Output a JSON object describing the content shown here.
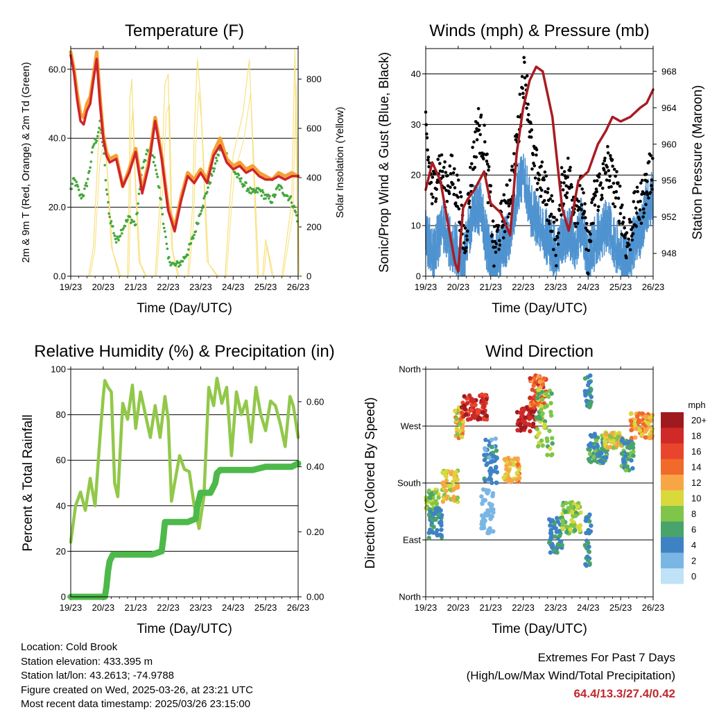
{
  "chart_data": [
    {
      "type": "line",
      "title": "Temperature (F)",
      "xlabel": "Time (Day/UTC)",
      "ylabel": "2m & 9m T (Red, Orange) & 2m Td (Green)",
      "y2label": "Solar Insolation (Yellow)",
      "x_ticks": [
        "19/23",
        "20/23",
        "21/23",
        "22/23",
        "23/23",
        "24/23",
        "25/23",
        "26/23"
      ],
      "xlim": [
        0,
        7
      ],
      "ylim": [
        0,
        66
      ],
      "y_ticks": [
        0,
        20,
        40,
        60
      ],
      "y_tick_labels": [
        "0.0",
        "20.0",
        "40.0",
        "60.0"
      ],
      "y2lim": [
        0,
        924
      ],
      "y2_ticks": [
        0,
        200,
        400,
        600,
        800
      ],
      "y2_tick_labels": [
        "0",
        "200",
        "400",
        "600",
        "800"
      ],
      "grid": "horizontal",
      "series": [
        {
          "key": "t9m",
          "color": "#f5a033",
          "x": [
            0,
            0.1,
            0.2,
            0.3,
            0.4,
            0.5,
            0.6,
            0.7,
            0.8,
            0.9,
            1.0,
            1.1,
            1.2,
            1.4,
            1.6,
            1.8,
            2.0,
            2.2,
            2.4,
            2.6,
            2.8,
            3.0,
            3.2,
            3.4,
            3.6,
            3.8,
            4.0,
            4.2,
            4.4,
            4.6,
            4.8,
            5.0,
            5.2,
            5.4,
            5.6,
            5.8,
            6.0,
            6.2,
            6.4,
            6.6,
            6.8,
            7.0
          ],
          "y": [
            65,
            60,
            53,
            47,
            46,
            50,
            52,
            58,
            65,
            52,
            41,
            36,
            34,
            35,
            26,
            31,
            37,
            25,
            33,
            46,
            35,
            20,
            14,
            23,
            30,
            28,
            31,
            28,
            36,
            40,
            34,
            32,
            33,
            31,
            32,
            30,
            29,
            28,
            30,
            29,
            30,
            29
          ]
        },
        {
          "key": "t2m",
          "color": "#d0242b",
          "x": [
            0,
            0.1,
            0.2,
            0.3,
            0.4,
            0.5,
            0.6,
            0.7,
            0.8,
            0.9,
            1.0,
            1.1,
            1.2,
            1.4,
            1.6,
            1.8,
            2.0,
            2.2,
            2.4,
            2.6,
            2.8,
            3.0,
            3.2,
            3.4,
            3.6,
            3.8,
            4.0,
            4.2,
            4.4,
            4.6,
            4.8,
            5.0,
            5.2,
            5.4,
            5.6,
            5.8,
            6.0,
            6.2,
            6.4,
            6.6,
            6.8,
            7.0
          ],
          "y": [
            64,
            59,
            51,
            45,
            44,
            48,
            50,
            57,
            63,
            50,
            40,
            35,
            33,
            34,
            26,
            30,
            36,
            24,
            32,
            45,
            34,
            19,
            13,
            22,
            29,
            27,
            30,
            27,
            35,
            38,
            33,
            31,
            32,
            30,
            31,
            29,
            28,
            28,
            29,
            28,
            29,
            29
          ]
        },
        {
          "key": "td",
          "color": "#44a83c",
          "x": [
            0,
            0.1,
            0.2,
            0.3,
            0.4,
            0.5,
            0.6,
            0.7,
            0.8,
            0.9,
            1.0,
            1.1,
            1.2,
            1.3,
            1.4,
            1.6,
            1.8,
            2.0,
            2.2,
            2.4,
            2.6,
            2.8,
            3.0,
            3.2,
            3.4,
            3.6,
            3.8,
            4.0,
            4.2,
            4.4,
            4.6,
            4.8,
            5.0,
            5.2,
            5.4,
            5.6,
            5.8,
            6.0,
            6.2,
            6.4,
            6.6,
            6.8,
            7.0
          ],
          "y": [
            25,
            28,
            26,
            23,
            24,
            27,
            32,
            38,
            40,
            44,
            38,
            25,
            17,
            14,
            10,
            14,
            17,
            15,
            31,
            37,
            33,
            20,
            5,
            3,
            4,
            7,
            12,
            19,
            25,
            31,
            37,
            35,
            31,
            28,
            26,
            24,
            25,
            23,
            22,
            26,
            24,
            22,
            16
          ]
        },
        {
          "key": "solar",
          "color": "#f8e07a",
          "x": [
            0.55,
            0.7,
            0.85,
            0.92,
            1.0,
            1.1,
            1.25,
            1.5,
            1.75,
            1.8,
            1.82,
            1.88,
            1.95,
            2.1,
            2.3,
            2.6,
            2.75,
            2.8,
            2.9,
            3.0,
            3.1,
            3.3,
            3.6,
            3.75,
            3.8,
            3.9,
            4.0,
            4.2,
            4.5,
            4.75,
            4.9,
            5.0,
            5.3,
            5.5,
            5.75,
            5.9,
            6.0,
            6.2,
            6.5,
            6.8,
            6.9,
            7.0
          ],
          "y": [
            0,
            120,
            530,
            600,
            620,
            480,
            120,
            0,
            0,
            360,
            720,
            800,
            480,
            60,
            0,
            0,
            310,
            420,
            780,
            820,
            120,
            0,
            0,
            280,
            580,
            880,
            720,
            60,
            0,
            0,
            310,
            490,
            660,
            880,
            0,
            0,
            150,
            0,
            0,
            300,
            920,
            0
          ]
        }
      ]
    },
    {
      "type": "scatter",
      "title": "Winds (mph) & Pressure (mb)",
      "xlabel": "Time (Day/UTC)",
      "ylabel": "Sonic/Prop Wind & Gust (Blue, Black)",
      "y2label": "Station Pressure (Maroon)",
      "x_ticks": [
        "19/23",
        "20/23",
        "21/23",
        "22/23",
        "23/23",
        "24/23",
        "25/23",
        "26/23"
      ],
      "xlim": [
        0,
        7
      ],
      "ylim": [
        0,
        45
      ],
      "y_ticks": [
        0,
        10,
        20,
        30,
        40
      ],
      "y2lim": [
        945.5,
        970.5
      ],
      "y2_ticks": [
        948,
        952,
        956,
        960,
        964,
        968
      ],
      "grid": "horizontal",
      "wind_avg": {
        "color": "#4f93d0",
        "x": [
          0,
          0.25,
          0.5,
          0.75,
          1.0,
          1.15,
          1.3,
          1.5,
          1.7,
          1.9,
          2.1,
          2.3,
          2.6,
          2.8,
          3.0,
          3.25,
          3.5,
          3.8,
          4.0,
          4.2,
          4.4,
          4.6,
          4.8,
          5.0,
          5.2,
          5.4,
          5.6,
          5.8,
          6.0,
          6.2,
          6.4,
          6.6,
          6.8,
          7.0
        ],
        "y": [
          10,
          5,
          12,
          8,
          6,
          3,
          10,
          15,
          15,
          7,
          4,
          6,
          10,
          18,
          22,
          14,
          12,
          8,
          6,
          9,
          10,
          8,
          12,
          4,
          8,
          10,
          12,
          8,
          6,
          4,
          8,
          10,
          15,
          17
        ]
      },
      "gust": {
        "color": "#000000",
        "x": [
          0,
          0.2,
          0.4,
          0.6,
          0.8,
          1.0,
          1.2,
          1.4,
          1.6,
          1.8,
          2.0,
          2.1,
          2.3,
          2.5,
          2.7,
          2.9,
          3.0,
          3.1,
          3.3,
          3.5,
          3.7,
          3.9,
          4.0,
          4.2,
          4.4,
          4.6,
          4.8,
          5.0,
          5.2,
          5.4,
          5.6,
          5.8,
          6.0,
          6.2,
          6.4,
          6.6,
          6.8,
          7.0
        ],
        "y": [
          28,
          16,
          22,
          18,
          20,
          16,
          6,
          20,
          30,
          26,
          14,
          5,
          10,
          14,
          20,
          32,
          40,
          38,
          22,
          20,
          16,
          12,
          5,
          18,
          20,
          14,
          16,
          4,
          16,
          18,
          22,
          18,
          14,
          6,
          12,
          14,
          18,
          22
        ]
      },
      "pressure": {
        "color": "#a81c22",
        "x": [
          0,
          0.2,
          0.45,
          0.7,
          0.9,
          1.0,
          1.15,
          1.3,
          1.5,
          1.8,
          2.0,
          2.3,
          2.6,
          2.8,
          3.0,
          3.2,
          3.4,
          3.6,
          3.9,
          4.2,
          4.4,
          4.55,
          4.7,
          5.0,
          5.3,
          5.55,
          5.75,
          6.0,
          6.3,
          6.6,
          6.8,
          7.0
        ],
        "y": [
          955,
          958,
          956,
          951,
          947,
          946,
          953,
          954,
          955,
          957,
          953.5,
          952.5,
          950,
          959,
          964,
          967,
          968.5,
          968,
          963,
          953,
          950.5,
          953,
          956,
          957,
          960,
          961.5,
          963,
          962.5,
          963,
          964,
          964.5,
          966
        ]
      }
    },
    {
      "type": "line",
      "title": "Relative Humidity (%) & Precipitation (in)",
      "xlabel": "Time (Day/UTC)",
      "ylabel": "Percent & Total Rainfall",
      "x_ticks": [
        "19/23",
        "20/23",
        "21/23",
        "22/23",
        "23/23",
        "24/23",
        "25/23",
        "26/23"
      ],
      "xlim": [
        0,
        7
      ],
      "ylim": [
        0,
        100
      ],
      "y_ticks": [
        0,
        20,
        40,
        60,
        80,
        100
      ],
      "y2lim": [
        0,
        0.7
      ],
      "y2_ticks": [
        0,
        0.2,
        0.4,
        0.6
      ],
      "y2_tick_labels": [
        "0.00",
        "0.20",
        "0.40",
        "0.60"
      ],
      "grid": "horizontal",
      "series": [
        {
          "key": "rh",
          "color": "#92c84a",
          "x": [
            0,
            0.15,
            0.3,
            0.45,
            0.6,
            0.75,
            0.9,
            1.0,
            1.05,
            1.15,
            1.25,
            1.35,
            1.45,
            1.6,
            1.75,
            1.9,
            2.0,
            2.15,
            2.3,
            2.45,
            2.6,
            2.75,
            2.9,
            3.0,
            3.1,
            3.2,
            3.35,
            3.5,
            3.65,
            3.8,
            3.95,
            4.1,
            4.25,
            4.4,
            4.5,
            4.65,
            4.8,
            4.95,
            5.1,
            5.25,
            5.4,
            5.55,
            5.7,
            5.85,
            6.0,
            6.15,
            6.3,
            6.45,
            6.6,
            6.75,
            6.85,
            7.0
          ],
          "y": [
            24,
            40,
            46,
            38,
            52,
            40,
            70,
            88,
            95,
            92,
            90,
            50,
            44,
            85,
            78,
            93,
            74,
            90,
            80,
            70,
            84,
            70,
            88,
            78,
            42,
            50,
            62,
            56,
            55,
            40,
            30,
            44,
            92,
            84,
            96,
            85,
            92,
            62,
            90,
            80,
            86,
            68,
            92,
            80,
            73,
            86,
            84,
            76,
            66,
            88,
            84,
            70
          ]
        },
        {
          "key": "precip",
          "color": "#4db94a",
          "x": [
            0,
            0.3,
            0.6,
            0.9,
            1.05,
            1.1,
            1.15,
            1.2,
            1.3,
            1.5,
            1.8,
            2.1,
            2.5,
            2.8,
            2.85,
            2.9,
            3.0,
            3.3,
            3.6,
            3.85,
            3.9,
            4.0,
            4.3,
            4.45,
            4.5,
            4.6,
            4.9,
            5.2,
            5.6,
            6.0,
            6.4,
            6.8,
            7.0
          ],
          "y": [
            0,
            0,
            0,
            0,
            0,
            0.03,
            0.08,
            0.11,
            0.13,
            0.13,
            0.13,
            0.13,
            0.13,
            0.14,
            0.18,
            0.23,
            0.23,
            0.23,
            0.23,
            0.24,
            0.28,
            0.32,
            0.32,
            0.35,
            0.38,
            0.39,
            0.39,
            0.39,
            0.39,
            0.4,
            0.4,
            0.4,
            0.41
          ]
        }
      ]
    },
    {
      "type": "scatter",
      "title": "Wind Direction",
      "xlabel": "Time (Day/UTC)",
      "ylabel": "Direction (Colored By Speed)",
      "x_ticks": [
        "19/23",
        "20/23",
        "21/23",
        "22/23",
        "23/23",
        "24/23",
        "25/23",
        "26/23"
      ],
      "xlim": [
        0,
        7
      ],
      "ylim": [
        0,
        360
      ],
      "y_ticks": [
        0,
        90,
        180,
        270,
        360
      ],
      "y_tick_labels": [
        "North",
        "East",
        "South",
        "West",
        "North"
      ],
      "grid": "horizontal",
      "colorbar": {
        "title": "mph",
        "labels": [
          "20+",
          "18",
          "16",
          "14",
          "12",
          "10",
          "8",
          "6",
          "4",
          "2",
          "0"
        ],
        "colors": [
          "#9e1a1f",
          "#cf2a27",
          "#e8452c",
          "#f06a2c",
          "#f8a645",
          "#d9d83d",
          "#7fc54a",
          "#48a46a",
          "#3f82c4",
          "#7ab6e4",
          "#bfe2f6"
        ]
      },
      "clusters": [
        {
          "x0": 0,
          "x1": 0.4,
          "d0": 135,
          "d1": 170,
          "s0": 6,
          "s1": 10
        },
        {
          "x0": 0.1,
          "x1": 0.5,
          "d0": 90,
          "d1": 140,
          "s0": 3,
          "s1": 6
        },
        {
          "x0": 0.5,
          "x1": 1.0,
          "d0": 150,
          "d1": 200,
          "s0": 8,
          "s1": 13
        },
        {
          "x0": 0.9,
          "x1": 1.15,
          "d0": 250,
          "d1": 300,
          "s0": 8,
          "s1": 14
        },
        {
          "x0": 1.1,
          "x1": 1.9,
          "d0": 280,
          "d1": 320,
          "s0": 15,
          "s1": 20
        },
        {
          "x0": 1.8,
          "x1": 2.2,
          "d0": 180,
          "d1": 250,
          "s0": 2,
          "s1": 6
        },
        {
          "x0": 1.7,
          "x1": 2.1,
          "d0": 100,
          "d1": 170,
          "s0": 1,
          "s1": 3
        },
        {
          "x0": 2.4,
          "x1": 2.9,
          "d0": 180,
          "d1": 220,
          "s0": 10,
          "s1": 14
        },
        {
          "x0": 2.8,
          "x1": 3.4,
          "d0": 260,
          "d1": 300,
          "s0": 17,
          "s1": 20
        },
        {
          "x0": 3.2,
          "x1": 3.7,
          "d0": 300,
          "d1": 350,
          "s0": 12,
          "s1": 18
        },
        {
          "x0": 3.4,
          "x1": 3.9,
          "d0": 220,
          "d1": 330,
          "s0": 6,
          "s1": 10
        },
        {
          "x0": 3.8,
          "x1": 4.2,
          "d0": 70,
          "d1": 130,
          "s0": 3,
          "s1": 6
        },
        {
          "x0": 4.2,
          "x1": 4.8,
          "d0": 100,
          "d1": 150,
          "s0": 6,
          "s1": 10
        },
        {
          "x0": 4.9,
          "x1": 5.1,
          "d0": 40,
          "d1": 130,
          "s0": 3,
          "s1": 6
        },
        {
          "x0": 4.9,
          "x1": 5.1,
          "d0": 300,
          "d1": 350,
          "s0": 3,
          "s1": 6
        },
        {
          "x0": 5.0,
          "x1": 5.6,
          "d0": 210,
          "d1": 260,
          "s0": 3,
          "s1": 8
        },
        {
          "x0": 5.5,
          "x1": 6.1,
          "d0": 235,
          "d1": 260,
          "s0": 8,
          "s1": 12
        },
        {
          "x0": 6.0,
          "x1": 6.4,
          "d0": 200,
          "d1": 250,
          "s0": 4,
          "s1": 8
        },
        {
          "x0": 6.3,
          "x1": 7.0,
          "d0": 250,
          "d1": 290,
          "s0": 10,
          "s1": 15
        }
      ]
    }
  ],
  "info": {
    "location": "Location: Cold Brook",
    "elevation": "Station elevation: 433.395 m",
    "latlon": "Station lat/lon: 43.2613; -74.9788",
    "created": "Figure created on Wed, 2025-03-26, at 23:21 UTC",
    "latest": "Most recent data timestamp: 2025/03/26 23:15:00"
  },
  "extremes": {
    "line1": "Extremes For Past 7 Days",
    "line2": "(High/Low/Max Wind/Total Precipitation)",
    "values": "64.4/13.3/27.4/0.42",
    "value_color": "#c0282d"
  }
}
